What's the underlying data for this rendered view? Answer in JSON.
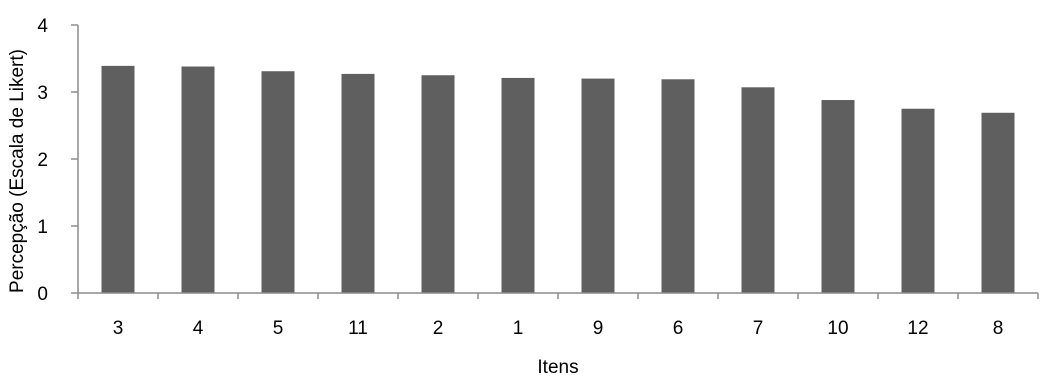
{
  "chart_data": {
    "type": "bar",
    "categories": [
      "3",
      "4",
      "5",
      "11",
      "2",
      "1",
      "9",
      "6",
      "7",
      "10",
      "12",
      "8"
    ],
    "values": [
      3.39,
      3.38,
      3.31,
      3.27,
      3.25,
      3.21,
      3.2,
      3.19,
      3.07,
      2.88,
      2.75,
      2.69
    ],
    "xlabel": "Itens",
    "ylabel": "Percepção (Escala de Likert)",
    "ylim": [
      0,
      4
    ],
    "yticks": [
      "0",
      "1",
      "2",
      "3",
      "4"
    ],
    "grid": false,
    "bar_color": "#5f5f5f",
    "axis_color": "#8c8c8c"
  }
}
